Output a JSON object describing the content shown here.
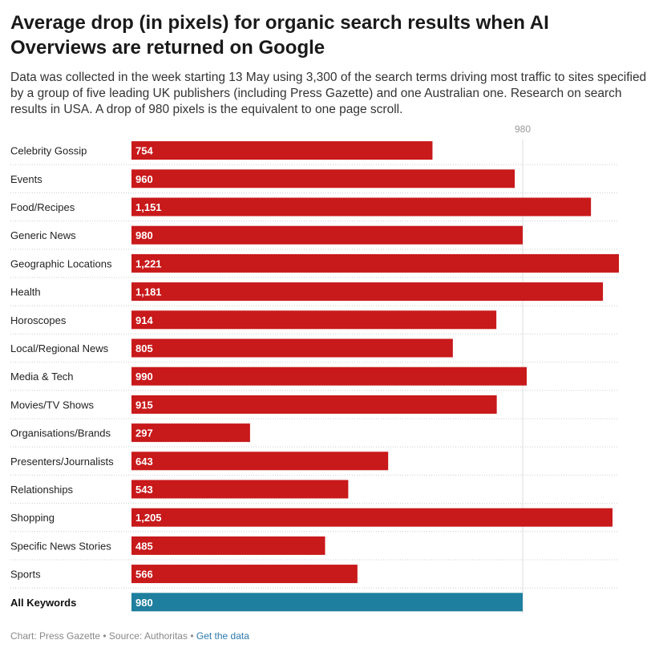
{
  "chart_data": {
    "type": "bar",
    "orientation": "horizontal",
    "title": "Average drop (in pixels) for organic search results when AI Overviews are returned on Google",
    "subtitle": "Data was collected in the week starting 13 May using 3,300 of the search terms driving most traffic to sites specified by a group of five leading UK publishers (including Press Gazette) and one Australian one. Research on search results in USA. A drop of 980 pixels is the equivalent to one page scroll.",
    "categories": [
      "Celebrity Gossip",
      "Events",
      "Food/Recipes",
      "Generic News",
      "Geographic Locations",
      "Health",
      "Horoscopes",
      "Local/Regional News",
      "Media & Tech",
      "Movies/TV Shows",
      "Organisations/Brands",
      "Presenters/Journalists",
      "Relationships",
      "Shopping",
      "Specific News Stories",
      "Sports",
      "All Keywords"
    ],
    "values": [
      754,
      960,
      1151,
      980,
      1221,
      1181,
      914,
      805,
      990,
      915,
      297,
      643,
      543,
      1205,
      485,
      566,
      980
    ],
    "value_labels": [
      "754",
      "960",
      "1,151",
      "980",
      "1,221",
      "1,181",
      "914",
      "805",
      "990",
      "915",
      "297",
      "643",
      "543",
      "1,205",
      "485",
      "566",
      "980"
    ],
    "highlight_category": "All Keywords",
    "reference_line": {
      "value": 980,
      "label": "980"
    },
    "xlim": [
      0,
      1221
    ],
    "colors": {
      "bar": "#c8191b",
      "highlight": "#1f7f9e",
      "reference": "#dddddd",
      "separator": "#cccccc"
    }
  },
  "footer": {
    "chart_credit": "Chart: Press Gazette",
    "separator": " • ",
    "source": "Source: Authoritas",
    "link": "Get the data"
  }
}
